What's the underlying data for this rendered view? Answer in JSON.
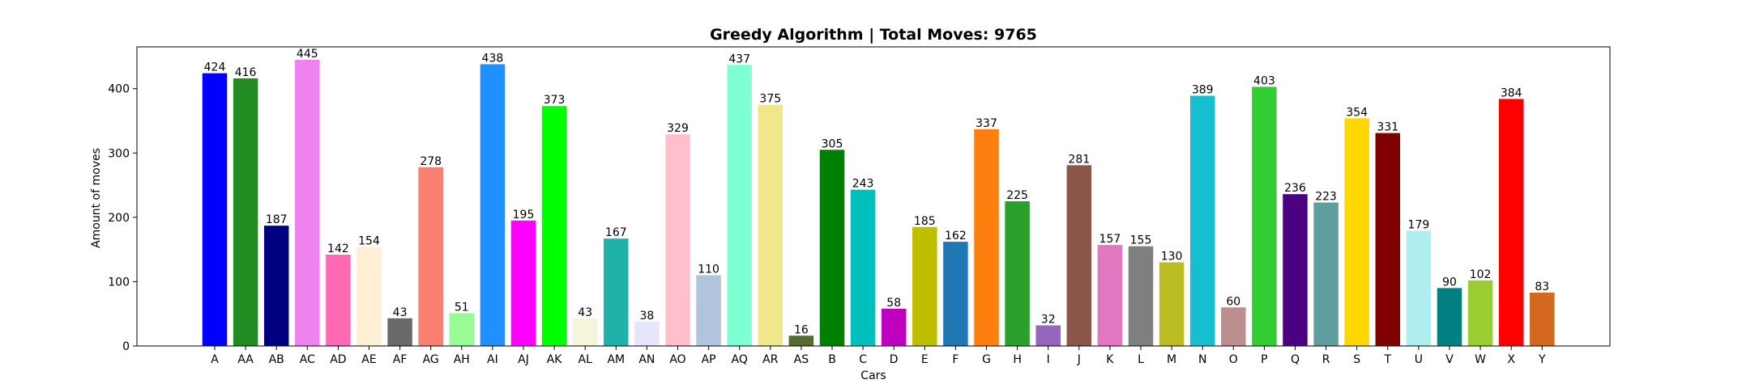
{
  "chart_data": {
    "type": "bar",
    "title": "Greedy Algorithm | Total Moves: 9765",
    "xlabel": "Cars",
    "ylabel": "Amount of moves",
    "ylim": [
      0,
      465
    ],
    "yticks": [
      0,
      100,
      200,
      300,
      400
    ],
    "grid": false,
    "categories": [
      "A",
      "AA",
      "AB",
      "AC",
      "AD",
      "AE",
      "AF",
      "AG",
      "AH",
      "AI",
      "AJ",
      "AK",
      "AL",
      "AM",
      "AN",
      "AO",
      "AP",
      "AQ",
      "AR",
      "AS",
      "B",
      "C",
      "D",
      "E",
      "F",
      "G",
      "H",
      "I",
      "J",
      "K",
      "L",
      "M",
      "N",
      "O",
      "P",
      "Q",
      "R",
      "S",
      "T",
      "U",
      "V",
      "W",
      "X",
      "Y"
    ],
    "values": [
      424,
      416,
      187,
      445,
      142,
      154,
      43,
      278,
      51,
      438,
      195,
      373,
      43,
      167,
      38,
      329,
      110,
      437,
      375,
      16,
      305,
      243,
      58,
      185,
      162,
      337,
      225,
      32,
      281,
      157,
      155,
      130,
      389,
      60,
      403,
      236,
      223,
      354,
      331,
      179,
      90,
      102,
      384,
      83
    ],
    "colors": [
      "#0000ff",
      "#228b22",
      "#000080",
      "#ee82ee",
      "#ff69b4",
      "#ffefd5",
      "#696969",
      "#fa8072",
      "#98fb98",
      "#1e90ff",
      "#ff00ff",
      "#00ff00",
      "#f5f5dc",
      "#20b2aa",
      "#e6e6fa",
      "#ffc0cb",
      "#b0c4de",
      "#7fffd4",
      "#f0e68c",
      "#556b2f",
      "#008000",
      "#00bfbf",
      "#bf00bf",
      "#bfbf00",
      "#1f77b4",
      "#ff7f0e",
      "#2ca02c",
      "#9467bd",
      "#8c564b",
      "#e377c2",
      "#7f7f7f",
      "#bcbd22",
      "#17becf",
      "#bc8f8f",
      "#32cd32",
      "#4b0082",
      "#5f9ea0",
      "#ffd700",
      "#800000",
      "#afeeee",
      "#008080",
      "#9acd32",
      "#ff0000",
      "#d2691e"
    ]
  }
}
